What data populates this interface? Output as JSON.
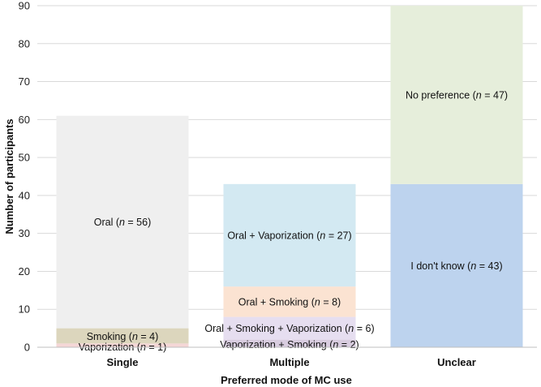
{
  "chart_data": {
    "type": "bar",
    "stacked": true,
    "xlabel": "Preferred mode of MC use",
    "ylabel": "Number of participants",
    "ylim": [
      0,
      90
    ],
    "yticks": [
      0,
      10,
      20,
      30,
      40,
      50,
      60,
      70,
      80,
      90
    ],
    "grid": true,
    "categories": [
      "Single",
      "Multiple",
      "Unclear"
    ],
    "bars": [
      {
        "category": "Single",
        "segments": [
          {
            "label": "Vaporization",
            "n": 1,
            "value": 1,
            "color": "#f4d6d6"
          },
          {
            "label": "Smoking",
            "n": 4,
            "value": 4,
            "color": "#dcd6bd"
          },
          {
            "label": "Oral",
            "n": 56,
            "value": 56,
            "color": "#efefef"
          }
        ]
      },
      {
        "category": "Multiple",
        "segments": [
          {
            "label": "Vaporization + Smoking",
            "n": 2,
            "value": 2,
            "color": "#d8ccdf"
          },
          {
            "label": "Oral + Smoking + Vaporization",
            "n": 6,
            "value": 6,
            "color": "#e6def0"
          },
          {
            "label": "Oral + Smoking",
            "n": 8,
            "value": 8,
            "color": "#fbe3d2"
          },
          {
            "label": "Oral + Vaporization",
            "n": 27,
            "value": 27,
            "color": "#d3e9f2"
          }
        ]
      },
      {
        "category": "Unclear",
        "segments": [
          {
            "label": "I don't know",
            "n": 43,
            "value": 43,
            "color": "#bdd3ee"
          },
          {
            "label": "No preference",
            "n": 47,
            "value": 47,
            "color": "#e6eedb"
          }
        ]
      }
    ]
  }
}
